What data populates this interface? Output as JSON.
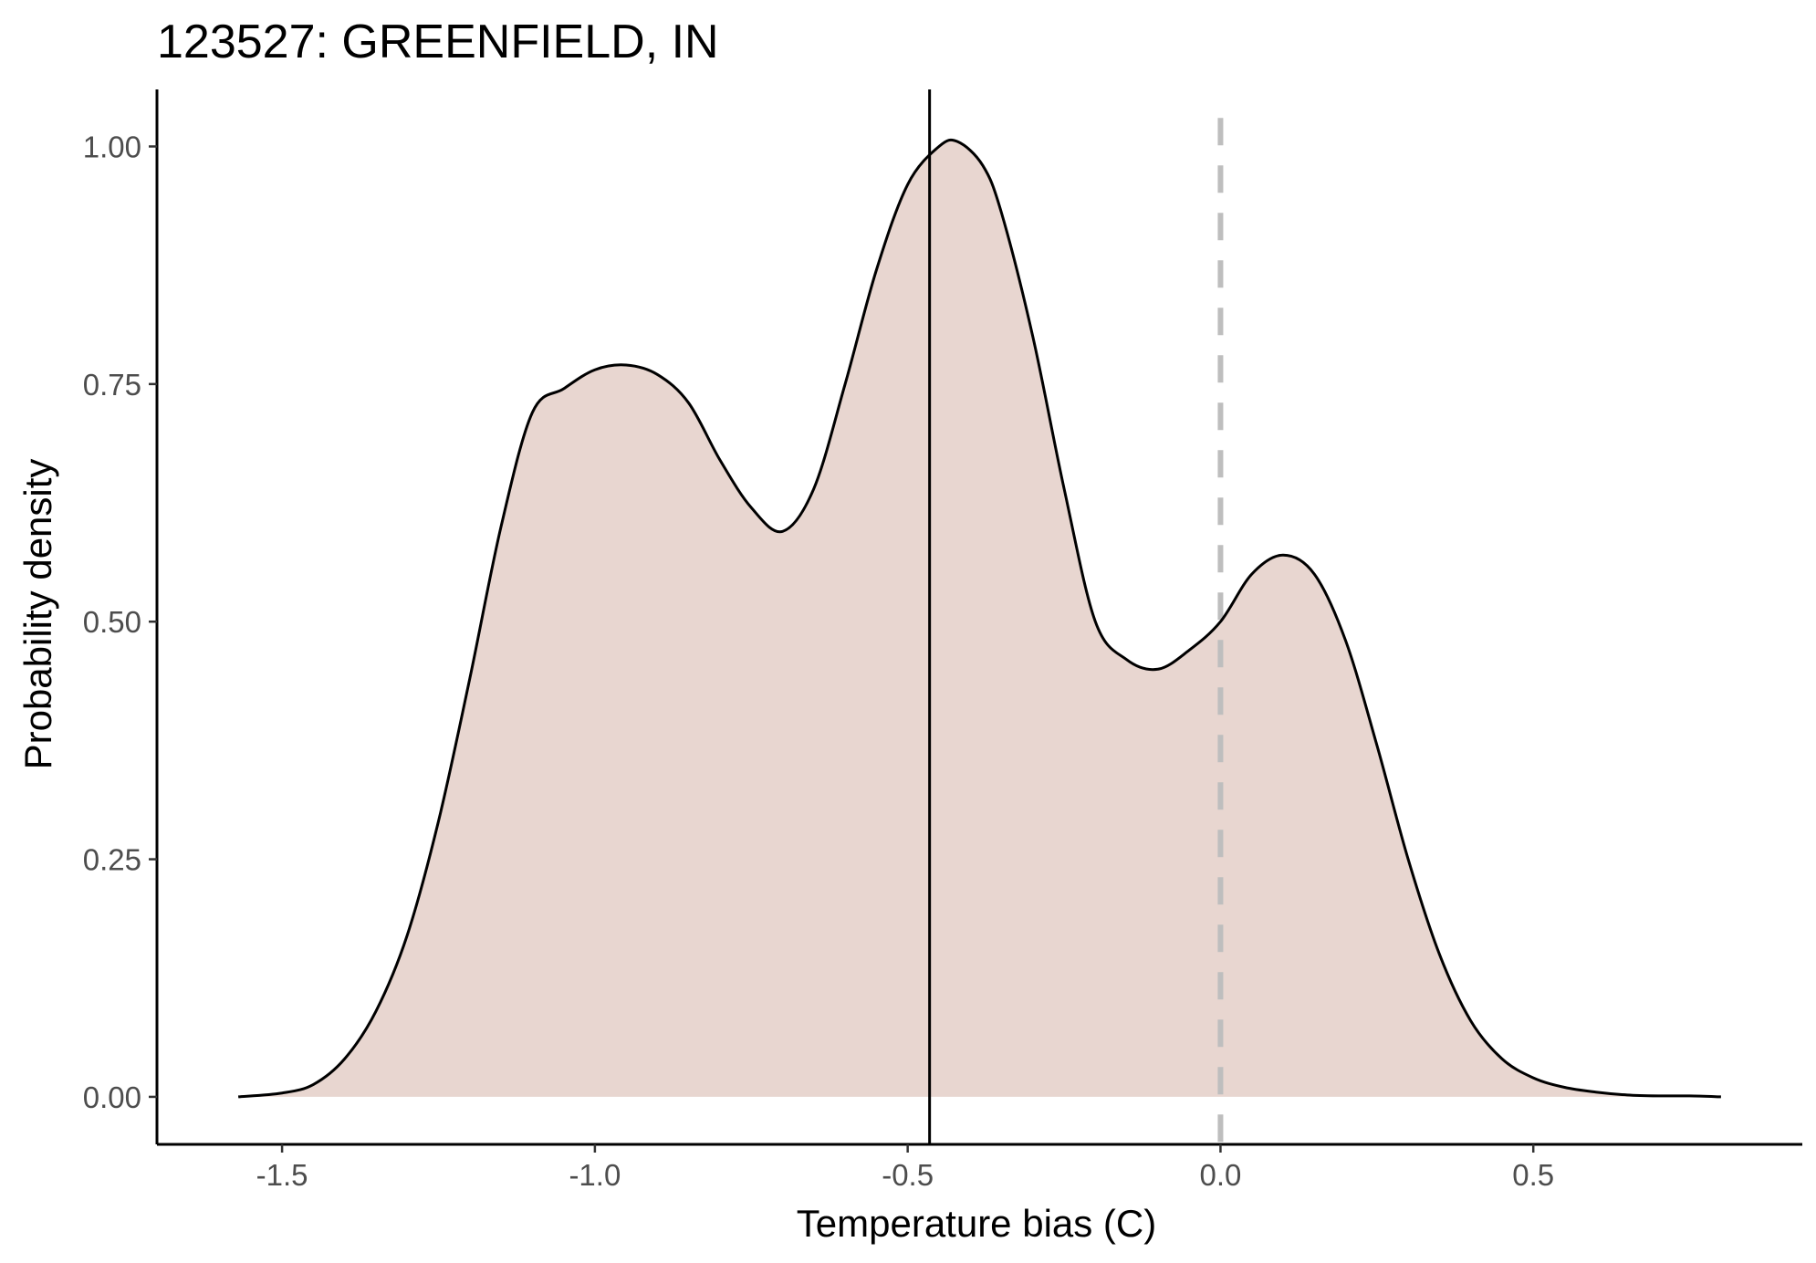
{
  "chart_data": {
    "type": "area",
    "title": "123527: GREENFIELD, IN",
    "xlabel": "Temperature bias (C)",
    "ylabel": "Probability density",
    "xlim": [
      -1.7,
      0.93
    ],
    "ylim": [
      -0.05,
      1.06
    ],
    "x_ticks": [
      {
        "value": -1.5,
        "label": "-1.5"
      },
      {
        "value": -1.0,
        "label": "-1.0"
      },
      {
        "value": -0.5,
        "label": "-0.5"
      },
      {
        "value": 0.0,
        "label": "0.0"
      },
      {
        "value": 0.5,
        "label": "0.5"
      }
    ],
    "y_ticks": [
      {
        "value": 0.0,
        "label": "0.00"
      },
      {
        "value": 0.25,
        "label": "0.25"
      },
      {
        "value": 0.5,
        "label": "0.50"
      },
      {
        "value": 0.75,
        "label": "0.75"
      },
      {
        "value": 1.0,
        "label": "1.00"
      }
    ],
    "grid": false,
    "legend": "none",
    "series": [
      {
        "x": [
          -1.57,
          -1.5,
          -1.45,
          -1.4,
          -1.35,
          -1.3,
          -1.25,
          -1.2,
          -1.15,
          -1.1,
          -1.05,
          -1.0,
          -0.95,
          -0.9,
          -0.85,
          -0.8,
          -0.75,
          -0.7,
          -0.65,
          -0.6,
          -0.55,
          -0.5,
          -0.45,
          -0.42,
          -0.38,
          -0.35,
          -0.3,
          -0.25,
          -0.2,
          -0.15,
          -0.1,
          -0.05,
          0.0,
          0.05,
          0.1,
          0.15,
          0.2,
          0.25,
          0.3,
          0.35,
          0.4,
          0.45,
          0.5,
          0.55,
          0.6,
          0.65,
          0.7,
          0.75,
          0.8
        ],
        "y": [
          0.0,
          0.004,
          0.013,
          0.04,
          0.09,
          0.17,
          0.29,
          0.44,
          0.6,
          0.72,
          0.745,
          0.765,
          0.77,
          0.76,
          0.73,
          0.67,
          0.62,
          0.595,
          0.64,
          0.75,
          0.87,
          0.96,
          1.0,
          1.005,
          0.98,
          0.93,
          0.8,
          0.64,
          0.5,
          0.46,
          0.45,
          0.47,
          0.5,
          0.55,
          0.57,
          0.55,
          0.48,
          0.37,
          0.25,
          0.15,
          0.08,
          0.04,
          0.02,
          0.01,
          0.005,
          0.002,
          0.001,
          0.001,
          0.0
        ]
      }
    ],
    "reference_lines": [
      {
        "x": -0.465,
        "style": "solid",
        "color": "#000000"
      },
      {
        "x": 0.0,
        "style": "dashed",
        "color": "#bebebe"
      }
    ],
    "colors": {
      "fill": "#e8d6d0",
      "curve": "#000000",
      "axis": "#000000",
      "tick_text": "#4d4d4d"
    }
  }
}
